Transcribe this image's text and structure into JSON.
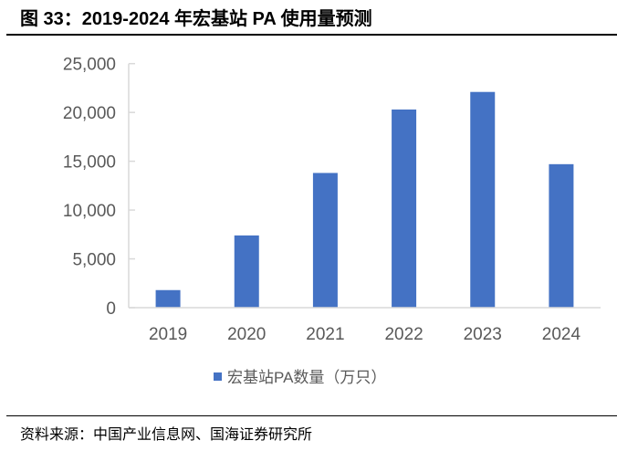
{
  "title": "图 33：2019-2024 年宏基站 PA 使用量预测",
  "source": "资料来源：中国产业信息网、国海证券研究所",
  "chart_data": {
    "type": "bar",
    "categories": [
      "2019",
      "2020",
      "2021",
      "2022",
      "2023",
      "2024"
    ],
    "series": [
      {
        "name": "宏基站PA数量（万只）",
        "values": [
          1800,
          7400,
          13800,
          20300,
          22100,
          14700
        ],
        "color": "#4472C4"
      }
    ],
    "ylim": [
      0,
      25000
    ],
    "yticks": [
      "0",
      "5,000",
      "10,000",
      "15,000",
      "20,000",
      "25,000"
    ],
    "legend": "bottom",
    "grid": false
  }
}
